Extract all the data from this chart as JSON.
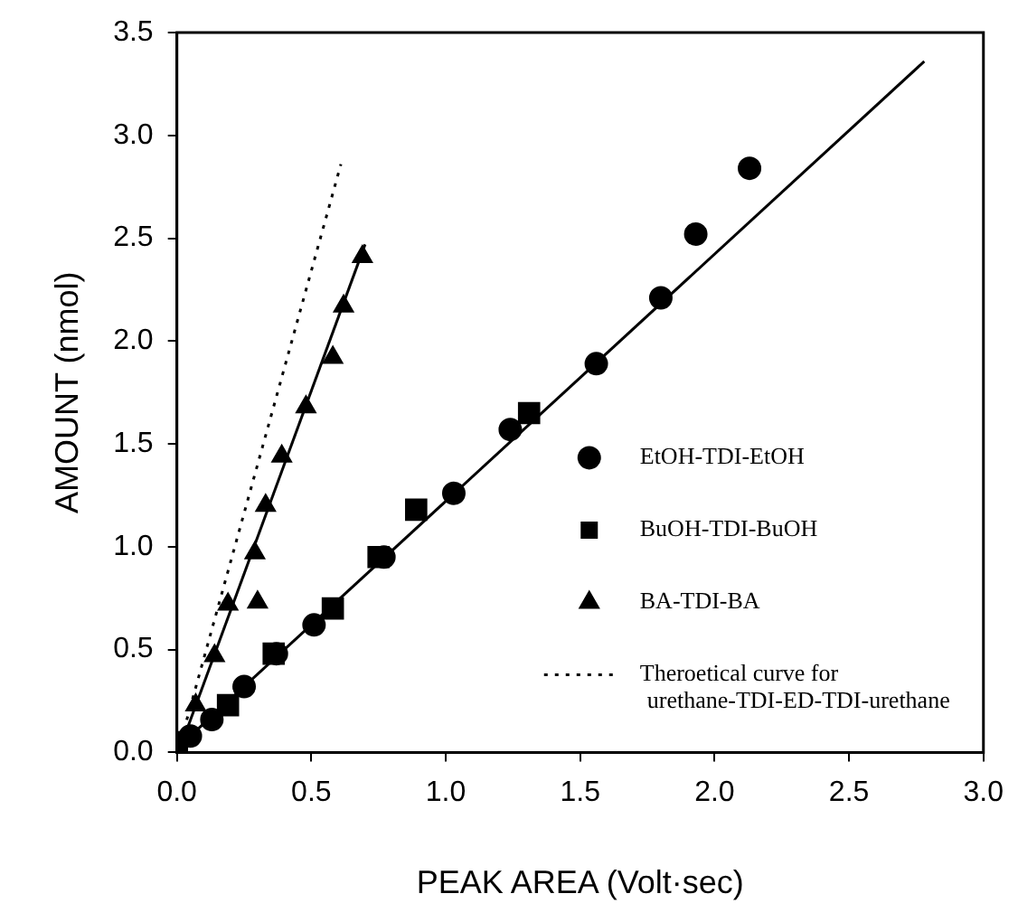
{
  "chart_data": {
    "type": "scatter",
    "xlabel": "PEAK AREA (Volt·sec)",
    "ylabel": "AMOUNT (nmol)",
    "xlim": [
      0,
      3
    ],
    "ylim": [
      0,
      3.5
    ],
    "xticks": [
      {
        "value": 0,
        "label": "0.0"
      },
      {
        "value": 0.5,
        "label": "0.5"
      },
      {
        "value": 1,
        "label": "1.0"
      },
      {
        "value": 1.5,
        "label": "1.5"
      },
      {
        "value": 2,
        "label": "2.0"
      },
      {
        "value": 2.5,
        "label": "2.5"
      },
      {
        "value": 3,
        "label": "3.0"
      }
    ],
    "yticks": [
      {
        "value": 0,
        "label": "0.0"
      },
      {
        "value": 0.5,
        "label": "0.5"
      },
      {
        "value": 1,
        "label": "1.0"
      },
      {
        "value": 1.5,
        "label": "1.5"
      },
      {
        "value": 2,
        "label": "2.0"
      },
      {
        "value": 2.5,
        "label": "2.5"
      },
      {
        "value": 3,
        "label": "3.0"
      },
      {
        "value": 3.5,
        "label": "3.5"
      }
    ],
    "grid": false,
    "legend": "bottom right",
    "series": [
      {
        "name": "EtOH-TDI-EtOH",
        "color": "#000000",
        "marker": "circle",
        "x": [
          0.05,
          0.13,
          0.25,
          0.37,
          0.51,
          0.77,
          1.03,
          1.24,
          1.56,
          1.8,
          1.93,
          2.13
        ],
        "values": [
          0.08,
          0.16,
          0.32,
          0.48,
          0.62,
          0.95,
          1.26,
          1.57,
          1.89,
          2.21,
          2.52,
          2.84
        ]
      },
      {
        "name": "BuOH-TDI-BuOH",
        "color": "#000000",
        "marker": "square",
        "x": [
          0,
          0.19,
          0.36,
          0.58,
          0.75,
          0.89,
          1.31
        ],
        "values": [
          0.05,
          0.23,
          0.48,
          0.7,
          0.95,
          1.18,
          1.65
        ]
      },
      {
        "name": "BA-TDI-BA",
        "color": "#000000",
        "marker": "triangle",
        "x": [
          0.07,
          0.14,
          0.19,
          0.3,
          0.29,
          0.33,
          0.39,
          0.48,
          0.58,
          0.62,
          0.69
        ],
        "values": [
          0.23,
          0.47,
          0.72,
          0.73,
          0.97,
          1.2,
          1.44,
          1.68,
          1.92,
          2.17,
          2.41
        ]
      },
      {
        "name": "Theroetical curve for\nurethane-TDI-ED-TDI-urethane",
        "type": "line",
        "color": "#000000",
        "marker": "none",
        "line_style": "dotted",
        "x": [
          0.02,
          0.61
        ],
        "values": [
          0.08,
          2.86
        ]
      },
      {
        "type": "line",
        "color": "#000000",
        "marker": "none",
        "line_style": "solid",
        "x": [
          0,
          2.78
        ],
        "values": [
          0.02,
          3.36
        ]
      },
      {
        "type": "line",
        "color": "#000000",
        "marker": "none",
        "line_style": "solid",
        "x": [
          0.02,
          0.7
        ],
        "values": [
          0.05,
          2.47
        ]
      }
    ]
  }
}
